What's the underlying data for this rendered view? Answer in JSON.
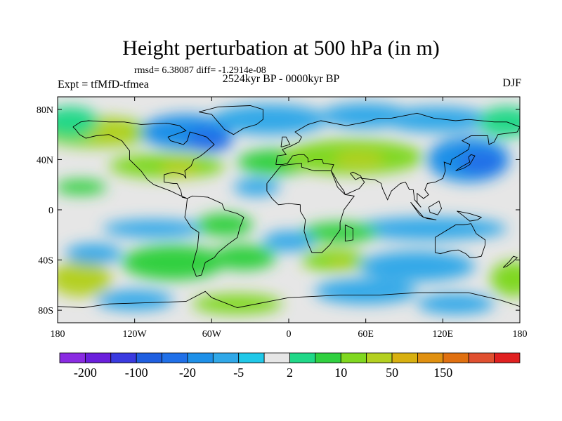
{
  "chart_data": {
    "type": "heatmap",
    "title": "Height perturbation at 500 hPa (in m)",
    "stats": "rmsd= 6.38087 diff= -1.2914e-08",
    "left_label": "Expt = tfMfD-tfmea",
    "center_label": "2524kyr BP - 0000kyr BP",
    "right_label": "DJF",
    "x_range": [
      -180,
      180
    ],
    "y_range": [
      -90,
      90
    ],
    "x_ticks": [
      {
        "value": -180,
        "label": "180"
      },
      {
        "value": -120,
        "label": "120W"
      },
      {
        "value": -60,
        "label": "60W"
      },
      {
        "value": 0,
        "label": "0"
      },
      {
        "value": 60,
        "label": "60E"
      },
      {
        "value": 120,
        "label": "120E"
      },
      {
        "value": 180,
        "label": "180"
      }
    ],
    "y_ticks": [
      {
        "value": 80,
        "label": "80N"
      },
      {
        "value": 40,
        "label": "40N"
      },
      {
        "value": 0,
        "label": "0"
      },
      {
        "value": -40,
        "label": "40S"
      },
      {
        "value": -80,
        "label": "80S"
      }
    ],
    "levels": [
      -200,
      -150,
      -100,
      -50,
      -20,
      -10,
      -5,
      -2,
      2,
      5,
      10,
      20,
      50,
      100,
      150,
      200
    ],
    "colors": [
      "#8a2be2",
      "#6a1fdc",
      "#3a3ae0",
      "#1f5fe0",
      "#2070e8",
      "#1e90e8",
      "#30a8e8",
      "#20c8e8",
      "#e6e6e6",
      "#20d888",
      "#30d040",
      "#80d820",
      "#b4d020",
      "#d8b010",
      "#e09010",
      "#e07010",
      "#e05030",
      "#e02020"
    ],
    "colorbar_labels": [
      {
        "level": -200,
        "text": "-200"
      },
      {
        "level": -100,
        "text": "-100"
      },
      {
        "level": -20,
        "text": "-20"
      },
      {
        "level": -5,
        "text": "-5"
      },
      {
        "level": 2,
        "text": "2"
      },
      {
        "level": 10,
        "text": "10"
      },
      {
        "level": 50,
        "text": "50"
      },
      {
        "level": 150,
        "text": "150"
      }
    ],
    "features": [
      {
        "lon": -150,
        "lat": 62,
        "w": 45,
        "h": 12,
        "value": 15
      },
      {
        "lon": -140,
        "lat": 62,
        "w": 22,
        "h": 9,
        "value": 45
      },
      {
        "lon": -80,
        "lat": 62,
        "w": 35,
        "h": 14,
        "value": -12
      },
      {
        "lon": -62,
        "lat": 56,
        "w": 18,
        "h": 10,
        "value": -22
      },
      {
        "lon": -95,
        "lat": 35,
        "w": 45,
        "h": 10,
        "value": 12
      },
      {
        "lon": -85,
        "lat": 33,
        "w": 15,
        "h": 7,
        "value": 22
      },
      {
        "lon": -15,
        "lat": 72,
        "w": 45,
        "h": 12,
        "value": -10
      },
      {
        "lon": 60,
        "lat": 75,
        "w": 35,
        "h": 10,
        "value": -9
      },
      {
        "lon": -10,
        "lat": 38,
        "w": 30,
        "h": 10,
        "value": 9
      },
      {
        "lon": 50,
        "lat": 42,
        "w": 55,
        "h": 14,
        "value": 12
      },
      {
        "lon": 55,
        "lat": 40,
        "w": 20,
        "h": 7,
        "value": 22
      },
      {
        "lon": 140,
        "lat": 40,
        "w": 32,
        "h": 18,
        "value": -12
      },
      {
        "lon": 150,
        "lat": 38,
        "w": 18,
        "h": 10,
        "value": -22
      },
      {
        "lon": 115,
        "lat": 72,
        "w": 42,
        "h": 10,
        "value": -7
      },
      {
        "lon": -170,
        "lat": 70,
        "w": 22,
        "h": 12,
        "value": 4
      },
      {
        "lon": 170,
        "lat": 70,
        "w": 22,
        "h": 12,
        "value": 4
      },
      {
        "lon": -162,
        "lat": 18,
        "w": 20,
        "h": 6,
        "value": 7
      },
      {
        "lon": -25,
        "lat": 18,
        "w": 18,
        "h": 7,
        "value": -7
      },
      {
        "lon": -105,
        "lat": -15,
        "w": 40,
        "h": 7,
        "value": -7
      },
      {
        "lon": -50,
        "lat": -12,
        "w": 22,
        "h": 9,
        "value": 7
      },
      {
        "lon": 110,
        "lat": -15,
        "w": 60,
        "h": 9,
        "value": -7
      },
      {
        "lon": 40,
        "lat": -18,
        "w": 30,
        "h": 8,
        "value": 6
      },
      {
        "lon": -162,
        "lat": -55,
        "w": 24,
        "h": 14,
        "value": 24
      },
      {
        "lon": -152,
        "lat": -35,
        "w": 22,
        "h": 8,
        "value": -10
      },
      {
        "lon": -90,
        "lat": -42,
        "w": 40,
        "h": 14,
        "value": 9
      },
      {
        "lon": -35,
        "lat": -38,
        "w": 25,
        "h": 10,
        "value": 9
      },
      {
        "lon": 0,
        "lat": -25,
        "w": 20,
        "h": 8,
        "value": -7
      },
      {
        "lon": 35,
        "lat": -40,
        "w": 25,
        "h": 9,
        "value": 11
      },
      {
        "lon": 40,
        "lat": -42,
        "w": 10,
        "h": 4,
        "value": 22
      },
      {
        "lon": 100,
        "lat": -45,
        "w": 45,
        "h": 12,
        "value": -10
      },
      {
        "lon": 175,
        "lat": -55,
        "w": 18,
        "h": 14,
        "value": 18
      },
      {
        "lon": 60,
        "lat": -65,
        "w": 40,
        "h": 10,
        "value": -9
      },
      {
        "lon": -40,
        "lat": -75,
        "w": 35,
        "h": 8,
        "value": 12
      },
      {
        "lon": -120,
        "lat": -72,
        "w": 30,
        "h": 8,
        "value": -7
      },
      {
        "lon": 130,
        "lat": -75,
        "w": 30,
        "h": 8,
        "value": -7
      }
    ],
    "coastlines": [
      [
        [
          -168,
          66
        ],
        [
          -162,
          70
        ],
        [
          -156,
          71
        ],
        [
          -140,
          70
        ],
        [
          -128,
          70
        ],
        [
          -115,
          68
        ],
        [
          -95,
          69
        ],
        [
          -85,
          67
        ],
        [
          -80,
          63
        ],
        [
          -94,
          58
        ],
        [
          -92,
          55
        ],
        [
          -82,
          52
        ],
        [
          -79,
          55
        ],
        [
          -77,
          62
        ],
        [
          -70,
          60
        ],
        [
          -64,
          58
        ],
        [
          -58,
          52
        ],
        [
          -66,
          45
        ],
        [
          -70,
          42
        ],
        [
          -74,
          40
        ],
        [
          -76,
          35
        ],
        [
          -81,
          31
        ],
        [
          -80,
          25
        ],
        [
          -82,
          28
        ],
        [
          -90,
          30
        ],
        [
          -97,
          28
        ],
        [
          -97,
          22
        ],
        [
          -90,
          21
        ],
        [
          -87,
          21
        ],
        [
          -84,
          15
        ],
        [
          -83,
          10
        ],
        [
          -79,
          9
        ],
        [
          -86,
          12
        ],
        [
          -92,
          15
        ],
        [
          -105,
          20
        ],
        [
          -110,
          24
        ],
        [
          -115,
          31
        ],
        [
          -118,
          34
        ],
        [
          -124,
          40
        ],
        [
          -124,
          47
        ],
        [
          -130,
          55
        ],
        [
          -140,
          60
        ],
        [
          -150,
          59
        ],
        [
          -158,
          57
        ],
        [
          -163,
          60
        ],
        [
          -166,
          64
        ],
        [
          -168,
          66
        ]
      ],
      [
        [
          -55,
          82
        ],
        [
          -30,
          83
        ],
        [
          -20,
          80
        ],
        [
          -20,
          72
        ],
        [
          -25,
          68
        ],
        [
          -35,
          65
        ],
        [
          -43,
          60
        ],
        [
          -50,
          64
        ],
        [
          -55,
          70
        ],
        [
          -60,
          76
        ],
        [
          -70,
          78
        ],
        [
          -55,
          82
        ]
      ],
      [
        [
          -79,
          9
        ],
        [
          -75,
          11
        ],
        [
          -63,
          10
        ],
        [
          -52,
          5
        ],
        [
          -50,
          0
        ],
        [
          -40,
          -3
        ],
        [
          -35,
          -6
        ],
        [
          -38,
          -14
        ],
        [
          -40,
          -22
        ],
        [
          -48,
          -28
        ],
        [
          -55,
          -34
        ],
        [
          -58,
          -38
        ],
        [
          -65,
          -42
        ],
        [
          -68,
          -52
        ],
        [
          -72,
          -53
        ],
        [
          -75,
          -45
        ],
        [
          -73,
          -37
        ],
        [
          -71,
          -30
        ],
        [
          -70,
          -18
        ],
        [
          -76,
          -14
        ],
        [
          -81,
          -6
        ],
        [
          -80,
          0
        ],
        [
          -79,
          9
        ]
      ],
      [
        [
          -10,
          36
        ],
        [
          -9,
          43
        ],
        [
          -2,
          44
        ],
        [
          -5,
          48
        ],
        [
          2,
          51
        ],
        [
          8,
          54
        ],
        [
          10,
          58
        ],
        [
          5,
          62
        ],
        [
          15,
          68
        ],
        [
          25,
          71
        ],
        [
          40,
          68
        ],
        [
          45,
          67
        ],
        [
          60,
          70
        ],
        [
          70,
          73
        ],
        [
          80,
          73
        ],
        [
          100,
          77
        ],
        [
          113,
          73
        ],
        [
          130,
          71
        ],
        [
          140,
          72
        ],
        [
          160,
          70
        ],
        [
          170,
          70
        ],
        [
          180,
          66
        ],
        [
          178,
          62
        ],
        [
          163,
          60
        ],
        [
          160,
          54
        ],
        [
          156,
          52
        ],
        [
          155,
          59
        ],
        [
          142,
          59
        ],
        [
          135,
          55
        ],
        [
          141,
          52
        ],
        [
          140,
          48
        ],
        [
          132,
          43
        ],
        [
          127,
          40
        ],
        [
          126,
          36
        ],
        [
          121,
          38
        ],
        [
          122,
          31
        ],
        [
          120,
          25
        ],
        [
          114,
          22
        ],
        [
          108,
          21
        ],
        [
          106,
          16
        ],
        [
          109,
          12
        ],
        [
          105,
          9
        ],
        [
          100,
          13
        ],
        [
          100,
          6
        ],
        [
          103,
          2
        ],
        [
          98,
          8
        ],
        [
          97,
          16
        ],
        [
          94,
          16
        ],
        [
          91,
          22
        ],
        [
          87,
          21
        ],
        [
          80,
          15
        ],
        [
          77,
          8
        ],
        [
          73,
          17
        ],
        [
          72,
          21
        ],
        [
          67,
          24
        ],
        [
          57,
          25
        ],
        [
          56,
          27
        ],
        [
          50,
          30
        ],
        [
          48,
          29
        ],
        [
          52,
          24
        ],
        [
          56,
          26
        ],
        [
          59,
          22
        ],
        [
          55,
          17
        ],
        [
          44,
          12
        ],
        [
          43,
          15
        ],
        [
          38,
          22
        ],
        [
          35,
          28
        ],
        [
          33,
          31
        ],
        [
          35,
          36
        ],
        [
          27,
          37
        ],
        [
          26,
          40
        ],
        [
          23,
          40
        ],
        [
          20,
          40
        ],
        [
          15,
          38
        ],
        [
          15,
          41
        ],
        [
          12,
          44
        ],
        [
          8,
          44
        ],
        [
          3,
          43
        ],
        [
          -1,
          37
        ],
        [
          -5,
          36
        ],
        [
          -10,
          36
        ]
      ],
      [
        [
          -17,
          21
        ],
        [
          -17,
          15
        ],
        [
          -13,
          9
        ],
        [
          -8,
          4
        ],
        [
          0,
          5
        ],
        [
          9,
          4
        ],
        [
          9,
          -1
        ],
        [
          13,
          -8
        ],
        [
          12,
          -17
        ],
        [
          15,
          -27
        ],
        [
          18,
          -34
        ],
        [
          26,
          -34
        ],
        [
          32,
          -28
        ],
        [
          35,
          -23
        ],
        [
          40,
          -16
        ],
        [
          40,
          -10
        ],
        [
          43,
          0
        ],
        [
          51,
          11
        ],
        [
          44,
          12
        ],
        [
          42,
          14
        ],
        [
          38,
          18
        ],
        [
          35,
          26
        ],
        [
          33,
          31
        ],
        [
          28,
          31
        ],
        [
          20,
          31
        ],
        [
          10,
          34
        ],
        [
          10,
          37
        ],
        [
          0,
          36
        ],
        [
          -6,
          35
        ],
        [
          -10,
          30
        ],
        [
          -17,
          21
        ]
      ],
      [
        [
          114,
          -22
        ],
        [
          114,
          -34
        ],
        [
          118,
          -35
        ],
        [
          125,
          -33
        ],
        [
          132,
          -32
        ],
        [
          138,
          -35
        ],
        [
          141,
          -38
        ],
        [
          145,
          -38
        ],
        [
          150,
          -37
        ],
        [
          153,
          -28
        ],
        [
          153,
          -24
        ],
        [
          146,
          -19
        ],
        [
          142,
          -11
        ],
        [
          136,
          -12
        ],
        [
          130,
          -12
        ],
        [
          122,
          -17
        ],
        [
          114,
          -22
        ]
      ],
      [
        [
          -6,
          50
        ],
        [
          -5,
          58
        ],
        [
          -2,
          58
        ],
        [
          1,
          52
        ],
        [
          -6,
          50
        ]
      ],
      [
        [
          130,
          31
        ],
        [
          134,
          34
        ],
        [
          141,
          38
        ],
        [
          140,
          42
        ],
        [
          142,
          44
        ],
        [
          145,
          43
        ],
        [
          141,
          36
        ],
        [
          136,
          33
        ],
        [
          130,
          31
        ]
      ],
      [
        [
          95,
          6
        ],
        [
          105,
          -6
        ],
        [
          102,
          -4
        ],
        [
          95,
          6
        ]
      ],
      [
        [
          105,
          -6
        ],
        [
          115,
          -8
        ],
        [
          108,
          -7
        ],
        [
          105,
          -6
        ]
      ],
      [
        [
          109,
          2
        ],
        [
          117,
          7
        ],
        [
          119,
          1
        ],
        [
          116,
          -4
        ],
        [
          110,
          -2
        ],
        [
          109,
          2
        ]
      ],
      [
        [
          131,
          -1
        ],
        [
          141,
          -3
        ],
        [
          150,
          -6
        ],
        [
          147,
          -8
        ],
        [
          141,
          -9
        ],
        [
          135,
          -4
        ],
        [
          131,
          -1
        ]
      ],
      [
        [
          44,
          -12
        ],
        [
          50,
          -15
        ],
        [
          50,
          -24
        ],
        [
          44,
          -25
        ],
        [
          44,
          -12
        ]
      ],
      [
        [
          167,
          -46
        ],
        [
          172,
          -41
        ],
        [
          175,
          -37
        ],
        [
          178,
          -38
        ],
        [
          175,
          -41
        ],
        [
          170,
          -45
        ],
        [
          167,
          -46
        ]
      ],
      [
        [
          -180,
          -77
        ],
        [
          -160,
          -78
        ],
        [
          -140,
          -75
        ],
        [
          -110,
          -74
        ],
        [
          -80,
          -73
        ],
        [
          -65,
          -65
        ],
        [
          -60,
          -70
        ],
        [
          -40,
          -78
        ],
        [
          0,
          -70
        ],
        [
          40,
          -68
        ],
        [
          70,
          -68
        ],
        [
          100,
          -66
        ],
        [
          140,
          -66
        ],
        [
          165,
          -72
        ],
        [
          180,
          -77
        ]
      ]
    ]
  }
}
